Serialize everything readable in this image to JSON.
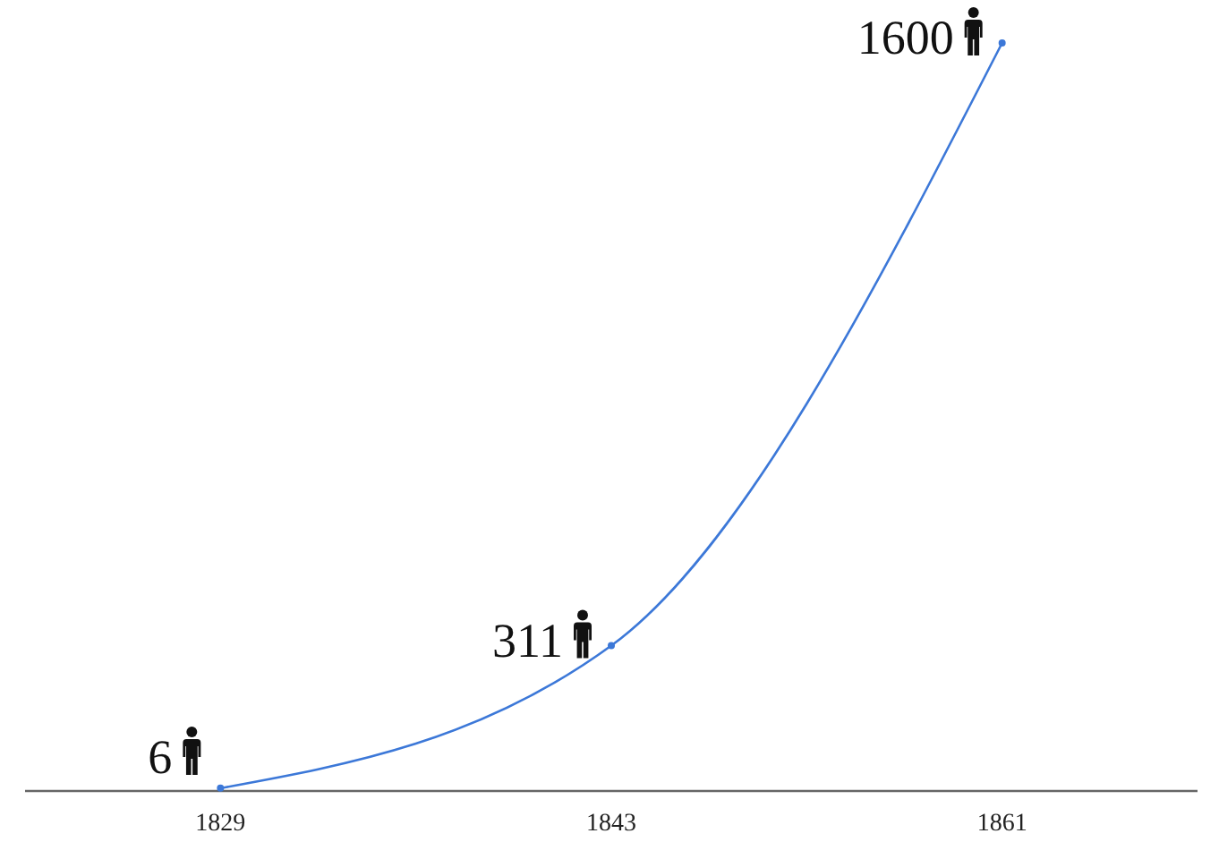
{
  "chart_data": {
    "type": "line",
    "categories": [
      "1829",
      "1843",
      "1861"
    ],
    "series": [
      {
        "color": "#3c78d8",
        "values": [
          6,
          311,
          1600
        ]
      }
    ],
    "data_labels": true,
    "marker": "circle",
    "line_style": "solid",
    "tick_labels": "x"
  }
}
